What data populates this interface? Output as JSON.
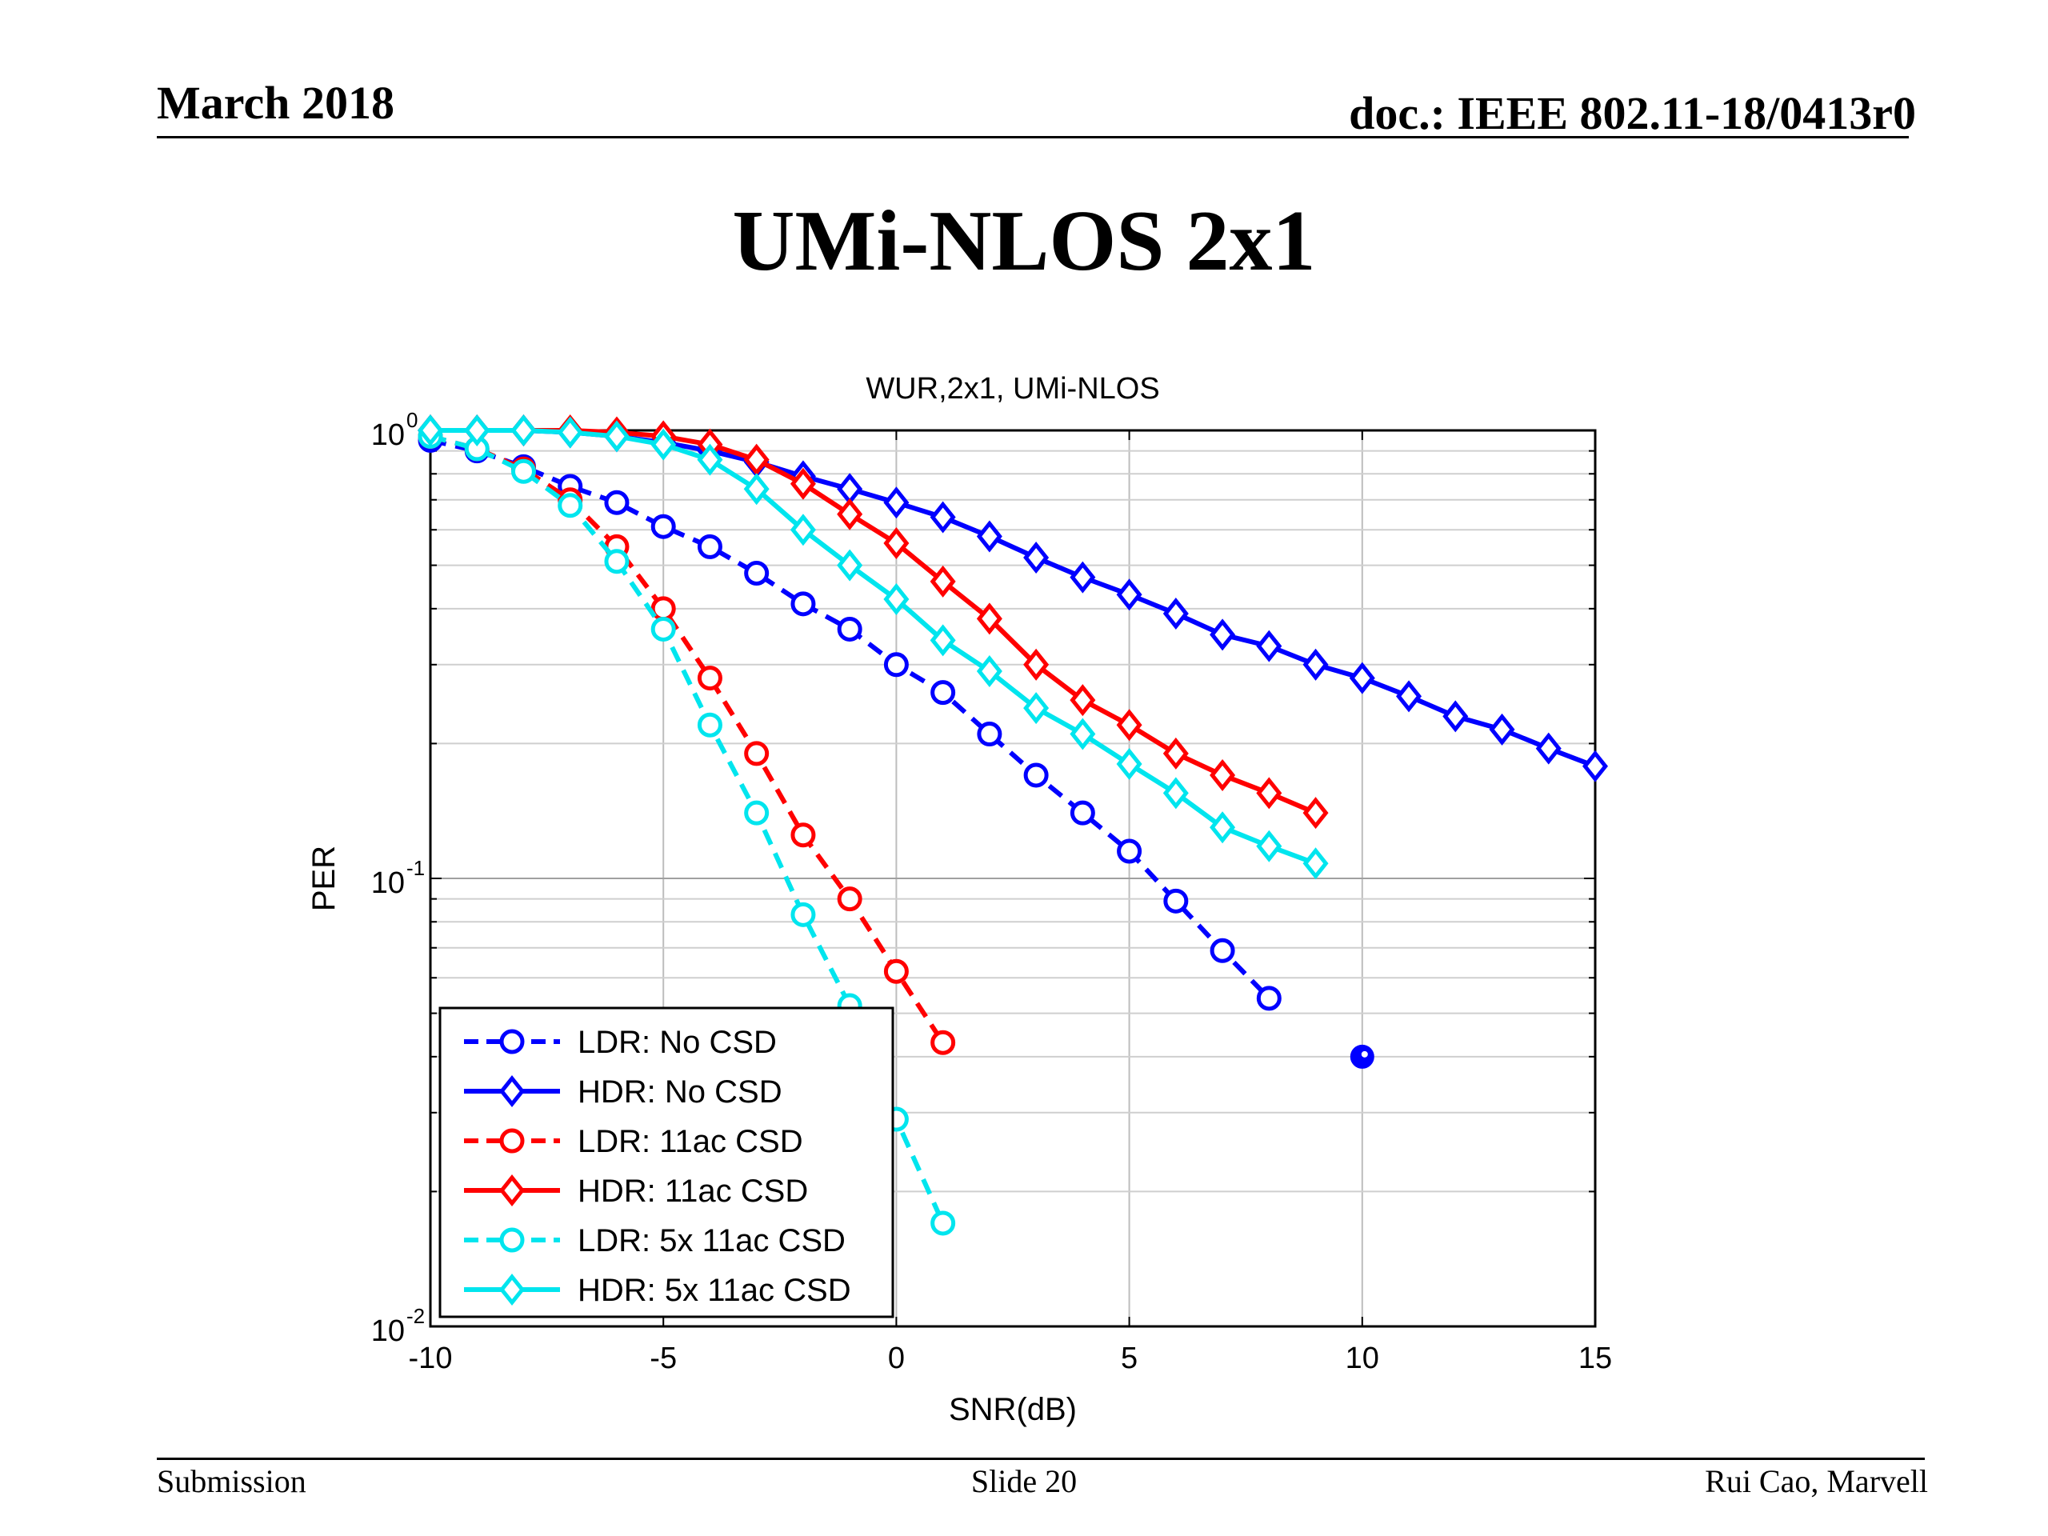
{
  "header": {
    "date": "March 2018",
    "doc": "doc.: IEEE 802.11-18/0413r0"
  },
  "slide_title": "UMi-NLOS 2x1",
  "footer": {
    "left": "Submission",
    "center": "Slide 20",
    "right": "Rui Cao, Marvell"
  },
  "chart_data": {
    "type": "line",
    "title": "WUR,2x1, UMi-NLOS",
    "xlabel": "SNR(dB)",
    "ylabel": "PER",
    "xlim": [
      -10,
      15
    ],
    "ylim": [
      0.01,
      1
    ],
    "yscale": "log",
    "grid": true,
    "legend_position": "bottom-left",
    "x_ticks": [
      "-10",
      "-5",
      "0",
      "5",
      "10",
      "15"
    ],
    "y_ticks": [
      {
        "base": "10",
        "exp": "0",
        "value": 1
      },
      {
        "base": "10",
        "exp": "-1",
        "value": 0.1
      },
      {
        "base": "10",
        "exp": "-2",
        "value": 0.01
      }
    ],
    "series": [
      {
        "name": "LDR: No CSD",
        "color": "#0000ff",
        "dash": true,
        "marker": "circle",
        "x": [
          -10,
          -9,
          -8,
          -7,
          -6,
          -5,
          -4,
          -3,
          -2,
          -1,
          0,
          1,
          2,
          3,
          4,
          5,
          6,
          7,
          8
        ],
        "y": [
          0.95,
          0.9,
          0.83,
          0.75,
          0.69,
          0.61,
          0.55,
          0.48,
          0.41,
          0.36,
          0.3,
          0.26,
          0.21,
          0.17,
          0.14,
          0.115,
          0.089,
          0.069,
          0.054
        ]
      },
      {
        "name": "HDR: No CSD",
        "color": "#0000ff",
        "dash": false,
        "marker": "diamond",
        "x": [
          -10,
          -9,
          -8,
          -7,
          -6,
          -5,
          -4,
          -3,
          -2,
          -1,
          0,
          1,
          2,
          3,
          4,
          5,
          6,
          7,
          8,
          9,
          10,
          11,
          12,
          13,
          14,
          15
        ],
        "y": [
          1.0,
          1.0,
          1.0,
          0.99,
          0.97,
          0.94,
          0.9,
          0.85,
          0.79,
          0.74,
          0.69,
          0.64,
          0.58,
          0.52,
          0.47,
          0.43,
          0.39,
          0.35,
          0.33,
          0.3,
          0.28,
          0.255,
          0.23,
          0.215,
          0.195,
          0.178
        ]
      },
      {
        "name": "LDR: 11ac CSD",
        "color": "#ff0000",
        "dash": true,
        "marker": "circle",
        "x": [
          -10,
          -9,
          -8,
          -7,
          -6,
          -5,
          -4,
          -3,
          -2,
          -1,
          0,
          1
        ],
        "y": [
          0.97,
          0.91,
          0.82,
          0.7,
          0.55,
          0.4,
          0.28,
          0.19,
          0.125,
          0.09,
          0.062,
          0.043
        ]
      },
      {
        "name": "HDR: 11ac CSD",
        "color": "#ff0000",
        "dash": false,
        "marker": "diamond",
        "x": [
          -10,
          -9,
          -8,
          -7,
          -6,
          -5,
          -4,
          -3,
          -2,
          -1,
          0,
          1,
          2,
          3,
          4,
          5,
          6,
          7,
          8,
          9
        ],
        "y": [
          1.0,
          1.0,
          1.0,
          1.0,
          0.99,
          0.97,
          0.93,
          0.86,
          0.76,
          0.65,
          0.56,
          0.46,
          0.38,
          0.3,
          0.25,
          0.22,
          0.19,
          0.17,
          0.155,
          0.14
        ]
      },
      {
        "name": "LDR: 5x 11ac CSD",
        "color": "#00e5ee",
        "dash": true,
        "marker": "circle",
        "x": [
          -10,
          -9,
          -8,
          -7,
          -6,
          -5,
          -4,
          -3,
          -2,
          -1,
          0,
          1
        ],
        "y": [
          0.97,
          0.91,
          0.81,
          0.68,
          0.51,
          0.36,
          0.22,
          0.14,
          0.083,
          0.052,
          0.029,
          0.017
        ]
      },
      {
        "name": "HDR: 5x 11ac CSD",
        "color": "#00e5ee",
        "dash": false,
        "marker": "diamond",
        "x": [
          -10,
          -9,
          -8,
          -7,
          -6,
          -5,
          -4,
          -3,
          -2,
          -1,
          0,
          1,
          2,
          3,
          4,
          5,
          6,
          7,
          8,
          9
        ],
        "y": [
          1.0,
          1.0,
          1.0,
          0.99,
          0.97,
          0.93,
          0.86,
          0.74,
          0.6,
          0.5,
          0.42,
          0.34,
          0.29,
          0.24,
          0.21,
          0.18,
          0.155,
          0.13,
          0.118,
          0.108
        ]
      }
    ],
    "annotations": [
      {
        "type": "filled-circle-marker",
        "color": "#0000ff",
        "x": 10,
        "y": 0.04
      }
    ]
  }
}
